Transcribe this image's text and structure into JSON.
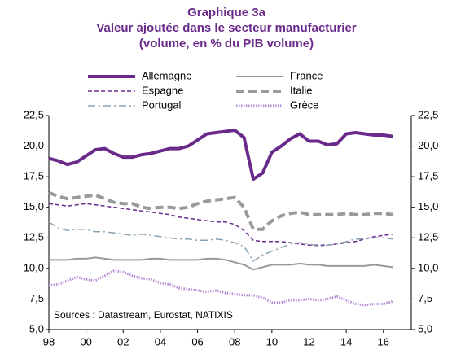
{
  "chart_data": {
    "type": "line",
    "title": "Graphique 3a",
    "subtitle": "Valeur ajoutée dans le secteur manufacturier",
    "subtitle2": "(volume, en % du PIB volume)",
    "annotation": "Sources : Datastream, Eurostat, NATIXIS",
    "x": [
      1998,
      1998.5,
      1999,
      1999.5,
      2000,
      2000.5,
      2001,
      2001.5,
      2002,
      2002.5,
      2003,
      2003.5,
      2004,
      2004.5,
      2005,
      2005.5,
      2006,
      2006.5,
      2007,
      2007.5,
      2008,
      2008.5,
      2009,
      2009.5,
      2010,
      2010.5,
      2011,
      2011.5,
      2012,
      2012.5,
      2013,
      2013.5,
      2014,
      2014.5,
      2015,
      2015.5,
      2016,
      2016.5
    ],
    "series": [
      {
        "name": "Allemagne",
        "color": "#6a2a8a",
        "style": "solid",
        "width": 4,
        "values": [
          19.0,
          18.8,
          18.5,
          18.7,
          19.2,
          19.7,
          19.8,
          19.4,
          19.1,
          19.1,
          19.3,
          19.4,
          19.6,
          19.8,
          19.8,
          20.0,
          20.5,
          21.0,
          21.1,
          21.2,
          21.3,
          20.7,
          17.3,
          17.8,
          19.5,
          20.0,
          20.6,
          21.0,
          20.4,
          20.4,
          20.1,
          20.2,
          21.0,
          21.1,
          21.0,
          20.9,
          20.9,
          20.8
        ]
      },
      {
        "name": "France",
        "color": "#9a9a9a",
        "style": "solid",
        "width": 2,
        "values": [
          10.7,
          10.7,
          10.7,
          10.8,
          10.8,
          10.9,
          10.8,
          10.7,
          10.7,
          10.7,
          10.7,
          10.8,
          10.8,
          10.7,
          10.7,
          10.7,
          10.7,
          10.8,
          10.8,
          10.7,
          10.5,
          10.3,
          9.9,
          10.1,
          10.3,
          10.3,
          10.3,
          10.4,
          10.3,
          10.3,
          10.2,
          10.2,
          10.2,
          10.2,
          10.2,
          10.3,
          10.2,
          10.1
        ]
      },
      {
        "name": "Espagne",
        "color": "#6a2a8a",
        "style": "dashed",
        "width": 1.5,
        "values": [
          15.3,
          15.2,
          15.1,
          15.2,
          15.3,
          15.2,
          15.1,
          15.0,
          14.9,
          14.8,
          14.7,
          14.6,
          14.5,
          14.4,
          14.2,
          14.1,
          14.0,
          13.9,
          13.8,
          13.8,
          13.6,
          13.1,
          12.3,
          12.2,
          12.2,
          12.2,
          12.1,
          12.0,
          11.9,
          11.9,
          11.9,
          12.0,
          12.1,
          12.2,
          12.4,
          12.6,
          12.7,
          12.8
        ]
      },
      {
        "name": "Italie",
        "color": "#9a9a9a",
        "style": "dashed",
        "width": 4,
        "values": [
          16.2,
          15.9,
          15.7,
          15.8,
          15.9,
          16.0,
          15.7,
          15.4,
          15.3,
          15.3,
          15.0,
          14.9,
          15.0,
          15.0,
          14.9,
          15.0,
          15.3,
          15.5,
          15.6,
          15.7,
          15.8,
          15.0,
          13.2,
          13.2,
          13.9,
          14.3,
          14.5,
          14.6,
          14.4,
          14.4,
          14.4,
          14.4,
          14.5,
          14.4,
          14.4,
          14.5,
          14.5,
          14.4
        ]
      },
      {
        "name": "Portugal",
        "color": "#8aa2b2",
        "style": "dashdot",
        "width": 1.5,
        "values": [
          13.8,
          13.3,
          13.1,
          13.2,
          13.2,
          13.0,
          13.0,
          12.9,
          12.8,
          12.7,
          12.8,
          12.7,
          12.6,
          12.5,
          12.4,
          12.4,
          12.3,
          12.3,
          12.4,
          12.3,
          12.1,
          11.8,
          10.6,
          11.1,
          11.4,
          11.7,
          12.0,
          12.1,
          12.0,
          11.8,
          11.9,
          12.0,
          12.2,
          12.4,
          12.4,
          12.5,
          12.5,
          12.4
        ]
      },
      {
        "name": "Grèce",
        "color": "#b58ad6",
        "style": "dotted",
        "width": 3,
        "values": [
          8.6,
          8.7,
          9.0,
          9.3,
          9.1,
          9.0,
          9.4,
          9.8,
          9.7,
          9.4,
          9.2,
          9.1,
          8.8,
          8.7,
          8.4,
          8.3,
          8.2,
          8.1,
          8.2,
          8.0,
          7.9,
          7.8,
          7.8,
          7.6,
          7.2,
          7.2,
          7.4,
          7.4,
          7.5,
          7.4,
          7.5,
          7.7,
          7.4,
          7.1,
          7.0,
          7.1,
          7.1,
          7.3
        ]
      }
    ],
    "xlim": [
      1998,
      2017.5
    ],
    "xticks": [
      {
        "value": 1998,
        "label": "98"
      },
      {
        "value": 2000,
        "label": "00"
      },
      {
        "value": 2002,
        "label": "02"
      },
      {
        "value": 2004,
        "label": "04"
      },
      {
        "value": 2006,
        "label": "06"
      },
      {
        "value": 2008,
        "label": "08"
      },
      {
        "value": 2010,
        "label": "10"
      },
      {
        "value": 2012,
        "label": "12"
      },
      {
        "value": 2014,
        "label": "14"
      },
      {
        "value": 2016,
        "label": "16"
      }
    ],
    "ylim": [
      5,
      22.5
    ],
    "yticks": [
      {
        "value": 5,
        "label": "5,0"
      },
      {
        "value": 7.5,
        "label": "7,5"
      },
      {
        "value": 10,
        "label": "10,0"
      },
      {
        "value": 12.5,
        "label": "12,5"
      },
      {
        "value": 15,
        "label": "15,0"
      },
      {
        "value": 17.5,
        "label": "17,5"
      },
      {
        "value": 20,
        "label": "20,0"
      },
      {
        "value": 22.5,
        "label": "22,5"
      }
    ],
    "y2lim": [
      5,
      22.5
    ],
    "y2ticks": [
      {
        "value": 5,
        "label": "5,0"
      },
      {
        "value": 7.5,
        "label": "7,5"
      },
      {
        "value": 10,
        "label": "10,0"
      },
      {
        "value": 12.5,
        "label": "12,5"
      },
      {
        "value": 15,
        "label": "15,0"
      },
      {
        "value": 17.5,
        "label": "17,5"
      },
      {
        "value": 20,
        "label": "20,0"
      },
      {
        "value": 22.5,
        "label": "22,5"
      }
    ],
    "grid": false
  }
}
